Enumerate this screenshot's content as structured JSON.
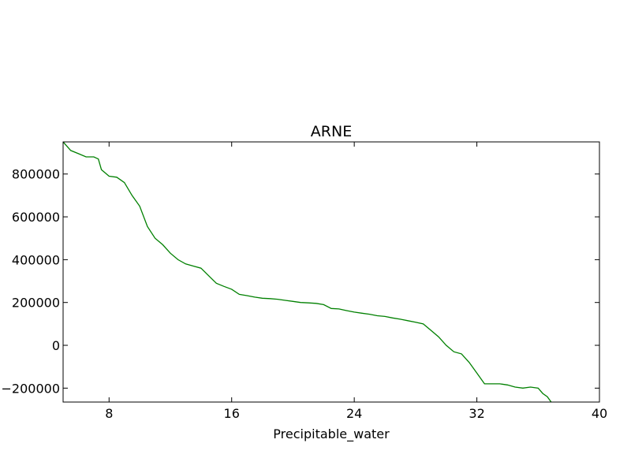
{
  "chart_data": {
    "type": "line",
    "title": "ARNE",
    "xlabel": "Precipitable_water",
    "ylabel": "",
    "xlim": [
      5,
      40
    ],
    "ylim": [
      -265000,
      950000
    ],
    "xticks": [
      8,
      16,
      24,
      32,
      40
    ],
    "yticks": [
      -200000,
      0,
      200000,
      400000,
      600000,
      800000
    ],
    "xtick_labels": [
      "8",
      "16",
      "24",
      "32",
      "40"
    ],
    "ytick_labels": [
      "−200000",
      "0",
      "200000",
      "400000",
      "600000",
      "800000"
    ],
    "grid": false,
    "series": [
      {
        "color": "#008000",
        "x": [
          5.0,
          5.5,
          6.0,
          6.5,
          7.0,
          7.3,
          7.5,
          8.0,
          8.5,
          9.0,
          9.5,
          10.0,
          10.5,
          11.0,
          11.5,
          12.0,
          12.5,
          13.0,
          13.5,
          14.0,
          14.5,
          15.0,
          15.5,
          16.0,
          16.5,
          17.0,
          17.5,
          18.0,
          18.5,
          19.0,
          19.5,
          20.0,
          20.5,
          21.0,
          21.5,
          22.0,
          22.5,
          23.0,
          23.5,
          24.0,
          24.5,
          25.0,
          25.5,
          26.0,
          26.5,
          27.0,
          27.5,
          28.0,
          28.5,
          29.0,
          29.5,
          30.0,
          30.5,
          31.0,
          31.5,
          32.0,
          32.5,
          33.0,
          33.5,
          34.0,
          34.5,
          35.0,
          35.5,
          36.0,
          36.3,
          36.6,
          36.9
        ],
        "y": [
          950000,
          910000,
          895000,
          880000,
          880000,
          870000,
          820000,
          790000,
          785000,
          760000,
          700000,
          650000,
          555000,
          500000,
          470000,
          430000,
          400000,
          380000,
          370000,
          360000,
          325000,
          290000,
          275000,
          262000,
          238000,
          232000,
          225000,
          220000,
          218000,
          215000,
          210000,
          205000,
          200000,
          198000,
          196000,
          190000,
          172000,
          170000,
          162000,
          155000,
          150000,
          145000,
          138000,
          135000,
          128000,
          122000,
          115000,
          108000,
          100000,
          70000,
          40000,
          0,
          -30000,
          -40000,
          -80000,
          -130000,
          -180000,
          -180000,
          -180000,
          -185000,
          -195000,
          -200000,
          -195000,
          -200000,
          -225000,
          -240000,
          -270000
        ]
      }
    ]
  }
}
